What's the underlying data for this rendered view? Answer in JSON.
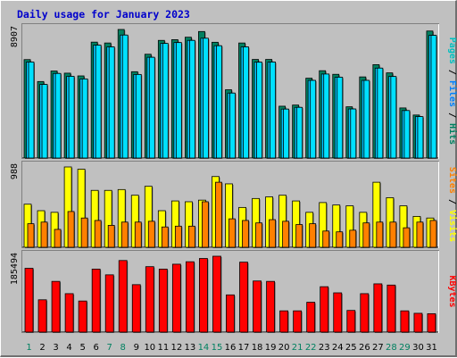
{
  "chart_data": {
    "type": "bar",
    "title": "Daily usage for January 2023",
    "categories": [
      "1",
      "2",
      "3",
      "4",
      "5",
      "6",
      "7",
      "8",
      "9",
      "10",
      "11",
      "12",
      "13",
      "14",
      "15",
      "16",
      "17",
      "18",
      "19",
      "20",
      "21",
      "22",
      "23",
      "24",
      "25",
      "26",
      "27",
      "28",
      "29",
      "30",
      "31"
    ],
    "weekend_days": [
      "1",
      "7",
      "8",
      "14",
      "15",
      "21",
      "22",
      "28",
      "29"
    ],
    "panels": [
      {
        "max_label": "8907",
        "ymax": 8907,
        "legend": [
          {
            "text": "Pages",
            "color": "#00c0c0"
          },
          {
            "text": " / ",
            "color": "#000000"
          },
          {
            "text": "Files",
            "color": "#0080ff"
          },
          {
            "text": " / ",
            "color": "#000000"
          },
          {
            "text": "Hits",
            "color": "#008060"
          }
        ],
        "series": [
          {
            "name": "Hits",
            "color": "#008060",
            "values": [
              6820,
              5300,
              6030,
              5880,
              5690,
              8030,
              7970,
              8907,
              5980,
              7190,
              8150,
              8200,
              8370,
              8765,
              8020,
              4730,
              7970,
              6830,
              6830,
              3590,
              3670,
              5530,
              6050,
              5800,
              3550,
              5620,
              6470,
              5900,
              3470,
              2980,
              8800
            ]
          },
          {
            "name": "Files",
            "color": "#00c8ff",
            "values": [
              6650,
              5100,
              5860,
              5660,
              5480,
              7820,
              7700,
              8520,
              5790,
              6980,
              7940,
              8000,
              8150,
              8300,
              7780,
              4500,
              7700,
              6640,
              6650,
              3390,
              3510,
              5380,
              5820,
              5600,
              3400,
              5380,
              6230,
              5650,
              3290,
              2870,
              8500
            ]
          },
          {
            "name": "Pages",
            "color": "#00e0ff",
            "values": [
              6650,
              5100,
              5860,
              5660,
              5480,
              7820,
              7700,
              8520,
              5790,
              6980,
              7940,
              8000,
              8150,
              8300,
              7780,
              4500,
              7700,
              6640,
              6650,
              3390,
              3510,
              5380,
              5820,
              5600,
              3400,
              5380,
              6230,
              5650,
              3290,
              2870,
              8500
            ]
          }
        ]
      },
      {
        "max_label": "988",
        "ymax": 988,
        "legend": [
          {
            "text": "Sites",
            "color": "#ff8000"
          },
          {
            "text": " / ",
            "color": "#000000"
          },
          {
            "text": "Visits",
            "color": "#ffff00"
          }
        ],
        "series": [
          {
            "name": "Visits",
            "color": "#ffff00",
            "values": [
              530,
              450,
              430,
              988,
              960,
              700,
              700,
              710,
              640,
              750,
              450,
              570,
              560,
              580,
              870,
              780,
              490,
              600,
              620,
              640,
              570,
              430,
              550,
              520,
              510,
              430,
              800,
              610,
              510,
              380,
              360
            ]
          },
          {
            "name": "Sites",
            "color": "#ff8000",
            "values": [
              290,
              310,
              220,
              440,
              360,
              330,
              270,
              310,
              310,
              320,
              250,
              260,
              260,
              560,
              800,
              350,
              330,
              300,
              340,
              320,
              280,
              290,
              200,
              190,
              210,
              300,
              310,
              310,
              240,
              310,
              330
            ]
          }
        ]
      },
      {
        "max_label": "185494",
        "ymax": 185494,
        "legend": [
          {
            "text": "KBytes",
            "color": "#ff0000"
          }
        ],
        "series": [
          {
            "name": "KBytes",
            "color": "#ff0000",
            "values": [
              156000,
              79000,
              124000,
              94000,
              76000,
              154000,
              140000,
              175000,
              116000,
              160000,
              154000,
              166000,
              172000,
              180000,
              185494,
              91000,
              171000,
              125000,
              124000,
              52000,
              52000,
              73000,
              111000,
              96000,
              53000,
              94000,
              118000,
              115000,
              52000,
              46000,
              45000
            ]
          }
        ]
      }
    ]
  }
}
